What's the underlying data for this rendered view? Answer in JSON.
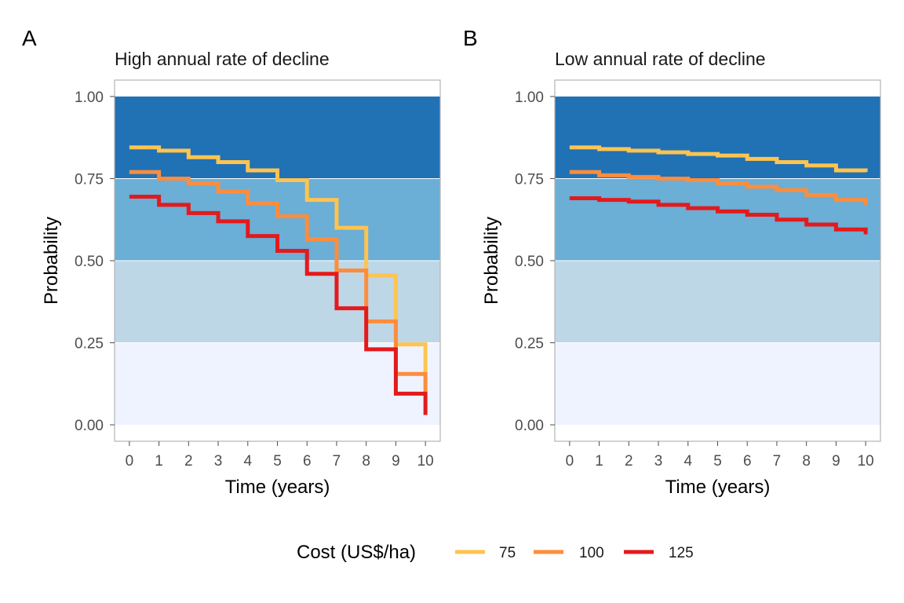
{
  "colors": {
    "band_top": "#2171b5",
    "band_upper_mid": "#6baed6",
    "band_lower_mid": "#bdd7e7",
    "band_bottom": "#eff3ff",
    "series": [
      "#fec44f",
      "#fd8d3c",
      "#e31a1c"
    ]
  },
  "legend": {
    "title": "Cost (US$/ha)",
    "items": [
      "75",
      "100",
      "125"
    ]
  },
  "chart_data": [
    {
      "type": "line",
      "step": true,
      "panel_letter": "A",
      "title": "High annual rate of decline",
      "xlabel": "Time (years)",
      "ylabel": "Probability",
      "xlim": [
        -0.5,
        10.5
      ],
      "ylim": [
        -0.05,
        1.05
      ],
      "x_ticks": [
        "0",
        "1",
        "2",
        "3",
        "4",
        "5",
        "6",
        "7",
        "8",
        "9",
        "10"
      ],
      "y_ticks": [
        "0.00",
        "0.25",
        "0.50",
        "0.75",
        "1.00"
      ],
      "bands": [
        [
          0,
          0.25
        ],
        [
          0.25,
          0.5
        ],
        [
          0.5,
          0.75
        ],
        [
          0.75,
          1.0
        ]
      ],
      "x": [
        0,
        1,
        2,
        3,
        4,
        5,
        6,
        7,
        8,
        9,
        10
      ],
      "series": [
        {
          "name": "75",
          "values": [
            0.845,
            0.835,
            0.815,
            0.8,
            0.775,
            0.745,
            0.685,
            0.6,
            0.455,
            0.245,
            0.155
          ]
        },
        {
          "name": "100",
          "values": [
            0.77,
            0.75,
            0.735,
            0.71,
            0.675,
            0.635,
            0.565,
            0.47,
            0.315,
            0.155,
            0.095
          ]
        },
        {
          "name": "125",
          "values": [
            0.695,
            0.67,
            0.645,
            0.62,
            0.575,
            0.53,
            0.46,
            0.355,
            0.23,
            0.095,
            0.03
          ]
        }
      ]
    },
    {
      "type": "line",
      "step": true,
      "panel_letter": "B",
      "title": "Low annual rate of decline",
      "xlabel": "Time (years)",
      "ylabel": "Probability",
      "xlim": [
        -0.5,
        10.5
      ],
      "ylim": [
        -0.05,
        1.05
      ],
      "x_ticks": [
        "0",
        "1",
        "2",
        "3",
        "4",
        "5",
        "6",
        "7",
        "8",
        "9",
        "10"
      ],
      "y_ticks": [
        "0.00",
        "0.25",
        "0.50",
        "0.75",
        "1.00"
      ],
      "bands": [
        [
          0,
          0.25
        ],
        [
          0.25,
          0.5
        ],
        [
          0.5,
          0.75
        ],
        [
          0.75,
          1.0
        ]
      ],
      "x": [
        0,
        1,
        2,
        3,
        4,
        5,
        6,
        7,
        8,
        9,
        10
      ],
      "series": [
        {
          "name": "75",
          "values": [
            0.845,
            0.84,
            0.835,
            0.83,
            0.825,
            0.82,
            0.81,
            0.8,
            0.79,
            0.775,
            0.77
          ]
        },
        {
          "name": "100",
          "values": [
            0.77,
            0.76,
            0.755,
            0.75,
            0.745,
            0.735,
            0.725,
            0.715,
            0.7,
            0.685,
            0.67
          ]
        },
        {
          "name": "125",
          "values": [
            0.69,
            0.685,
            0.68,
            0.67,
            0.66,
            0.65,
            0.64,
            0.625,
            0.61,
            0.595,
            0.58
          ]
        }
      ]
    }
  ]
}
